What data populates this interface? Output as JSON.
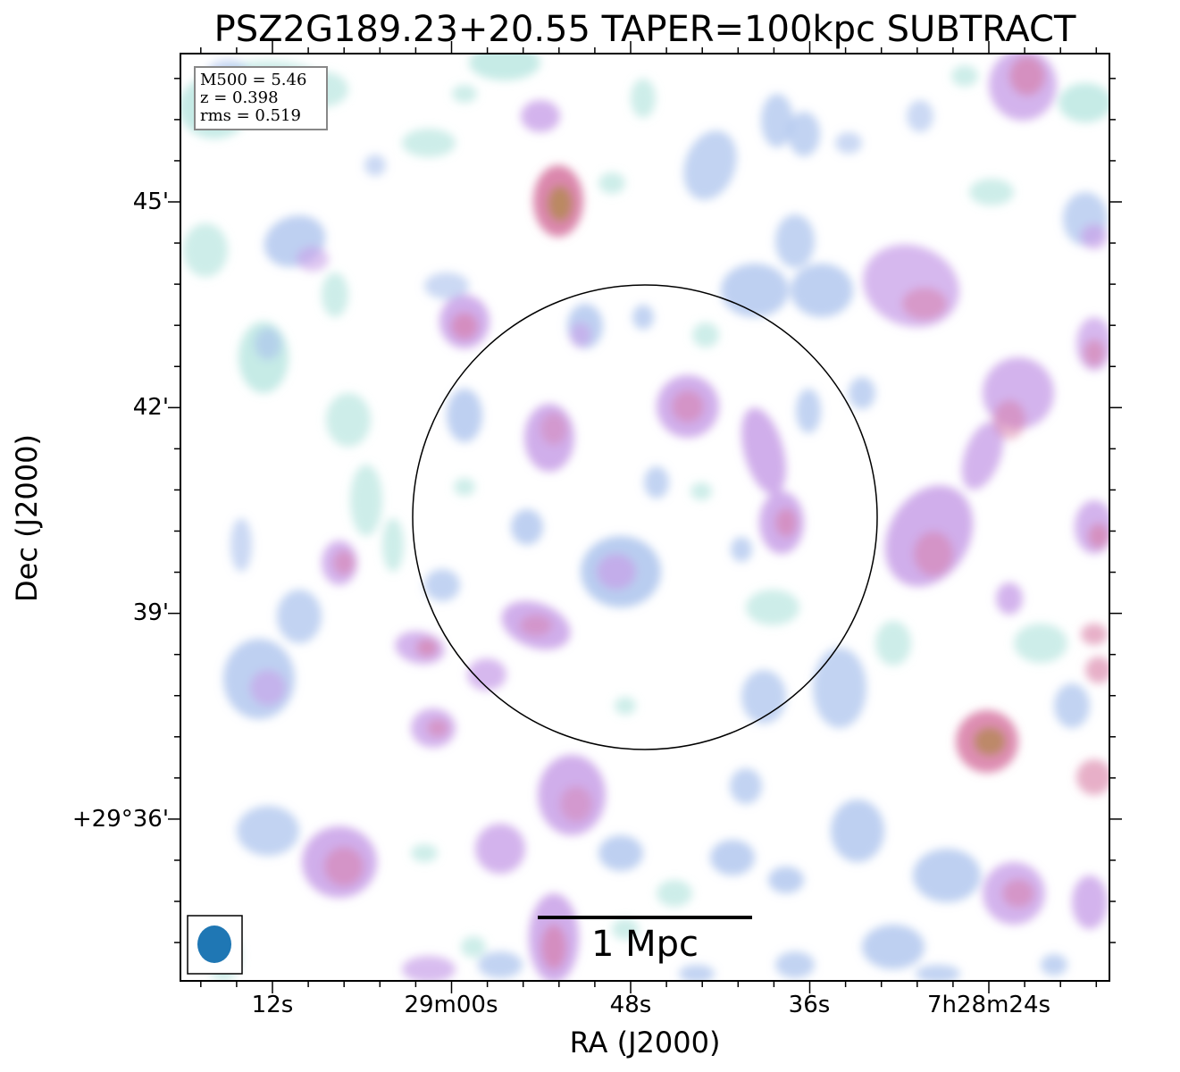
{
  "title": "PSZ2G189.23+20.55 TAPER=100kpc SUBTRACT",
  "xaxis_label": "RA (J2000)",
  "yaxis_label": "Dec (J2000)",
  "xticks": [
    "12s",
    "29m00s",
    "48s",
    "36s",
    "7h28m24s"
  ],
  "yticks": [
    "45'",
    "42'",
    "39'",
    "+29°36'"
  ],
  "info": {
    "m500": "M500 = 5.46",
    "z": "z = 0.398",
    "rms": "rms = 0.519"
  },
  "scalebar": "1 Mpc",
  "colors": {
    "faint": "#b8e6e0",
    "low": "#a8c0ec",
    "mid": "#c8a0e8",
    "high": "#d77aa4",
    "peak": "#b88a5c",
    "beam": "#1f77b4"
  },
  "icons": {
    "beam": "beam-ellipse-icon",
    "circle": "r500-circle-icon"
  }
}
